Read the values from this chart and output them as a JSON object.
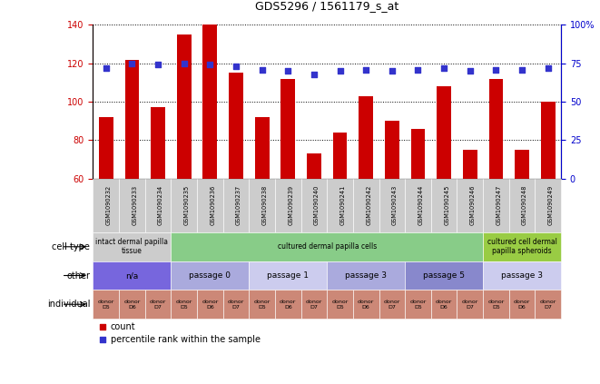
{
  "title": "GDS5296 / 1561179_s_at",
  "samples": [
    "GSM1090232",
    "GSM1090233",
    "GSM1090234",
    "GSM1090235",
    "GSM1090236",
    "GSM1090237",
    "GSM1090238",
    "GSM1090239",
    "GSM1090240",
    "GSM1090241",
    "GSM1090242",
    "GSM1090243",
    "GSM1090244",
    "GSM1090245",
    "GSM1090246",
    "GSM1090247",
    "GSM1090248",
    "GSM1090249"
  ],
  "counts": [
    92,
    122,
    97,
    135,
    140,
    115,
    92,
    112,
    73,
    84,
    103,
    90,
    86,
    108,
    75,
    112,
    75,
    100
  ],
  "percentiles": [
    72,
    75,
    74,
    75,
    74,
    73,
    71,
    70,
    68,
    70,
    71,
    70,
    71,
    72,
    70,
    71,
    71,
    72
  ],
  "ylim_left": [
    60,
    140
  ],
  "ylim_right": [
    0,
    100
  ],
  "yticks_left": [
    60,
    80,
    100,
    120,
    140
  ],
  "yticks_right": [
    0,
    25,
    50,
    75,
    100
  ],
  "bar_color": "#cc0000",
  "dot_color": "#3333cc",
  "cell_type_groups": [
    {
      "label": "intact dermal papilla\ntissue",
      "start": 0,
      "end": 3,
      "color": "#cccccc"
    },
    {
      "label": "cultured dermal papilla cells",
      "start": 3,
      "end": 15,
      "color": "#88cc88"
    },
    {
      "label": "cultured cell dermal\npapilla spheroids",
      "start": 15,
      "end": 18,
      "color": "#99cc44"
    }
  ],
  "other_groups": [
    {
      "label": "n/a",
      "start": 0,
      "end": 3,
      "color": "#7766dd"
    },
    {
      "label": "passage 0",
      "start": 3,
      "end": 6,
      "color": "#aaaadd"
    },
    {
      "label": "passage 1",
      "start": 6,
      "end": 9,
      "color": "#ccccee"
    },
    {
      "label": "passage 3",
      "start": 9,
      "end": 12,
      "color": "#aaaadd"
    },
    {
      "label": "passage 5",
      "start": 12,
      "end": 15,
      "color": "#8888cc"
    },
    {
      "label": "passage 3",
      "start": 15,
      "end": 18,
      "color": "#ccccee"
    }
  ],
  "individual_groups": [
    {
      "label": "donor\nD5",
      "start": 0,
      "end": 1
    },
    {
      "label": "donor\nD6",
      "start": 1,
      "end": 2
    },
    {
      "label": "donor\nD7",
      "start": 2,
      "end": 3
    },
    {
      "label": "donor\nD5",
      "start": 3,
      "end": 4
    },
    {
      "label": "donor\nD6",
      "start": 4,
      "end": 5
    },
    {
      "label": "donor\nD7",
      "start": 5,
      "end": 6
    },
    {
      "label": "donor\nD5",
      "start": 6,
      "end": 7
    },
    {
      "label": "donor\nD6",
      "start": 7,
      "end": 8
    },
    {
      "label": "donor\nD7",
      "start": 8,
      "end": 9
    },
    {
      "label": "donor\nD5",
      "start": 9,
      "end": 10
    },
    {
      "label": "donor\nD6",
      "start": 10,
      "end": 11
    },
    {
      "label": "donor\nD7",
      "start": 11,
      "end": 12
    },
    {
      "label": "donor\nD5",
      "start": 12,
      "end": 13
    },
    {
      "label": "donor\nD6",
      "start": 13,
      "end": 14
    },
    {
      "label": "donor\nD7",
      "start": 14,
      "end": 15
    },
    {
      "label": "donor\nD5",
      "start": 15,
      "end": 16
    },
    {
      "label": "donor\nD6",
      "start": 16,
      "end": 17
    },
    {
      "label": "donor\nD7",
      "start": 17,
      "end": 18
    }
  ],
  "individual_color": "#cc8877",
  "row_labels": [
    "cell type",
    "other",
    "individual"
  ],
  "legend_count_label": "count",
  "legend_pct_label": "percentile rank within the sample",
  "background_color": "#ffffff",
  "right_axis_color": "#0000cc",
  "left_axis_color": "#cc0000",
  "xlabels_bg": "#cccccc",
  "grid_color": "#000000"
}
